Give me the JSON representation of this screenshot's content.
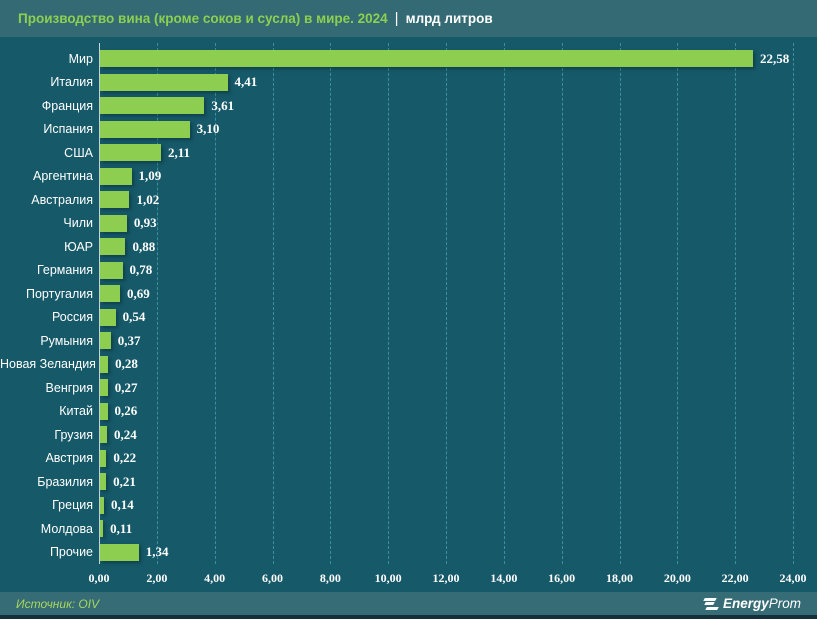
{
  "header": {
    "title": "Производство вина (кроме соков и сусла) в мире. 2024",
    "separator": "|",
    "subtitle": "млрд литров"
  },
  "chart_data": {
    "type": "bar",
    "orientation": "horizontal",
    "title": "Производство вина (кроме соков и сусла) в мире. 2024",
    "unit": "млрд литров",
    "categories": [
      "Мир",
      "Италия",
      "Франция",
      "Испания",
      "США",
      "Аргентина",
      "Австралия",
      "Чили",
      "ЮАР",
      "Германия",
      "Португалия",
      "Россия",
      "Румыния",
      "Новая Зеландия",
      "Венгрия",
      "Китай",
      "Грузия",
      "Австрия",
      "Бразилия",
      "Греция",
      "Молдова",
      "Прочие"
    ],
    "values": [
      22.58,
      4.41,
      3.61,
      3.1,
      2.11,
      1.09,
      1.02,
      0.93,
      0.88,
      0.78,
      0.69,
      0.54,
      0.37,
      0.28,
      0.27,
      0.26,
      0.24,
      0.22,
      0.21,
      0.14,
      0.11,
      1.34
    ],
    "value_labels": [
      "22,58",
      "4,41",
      "3,61",
      "3,10",
      "2,11",
      "1,09",
      "1,02",
      "0,93",
      "0,88",
      "0,78",
      "0,69",
      "0,54",
      "0,37",
      "0,28",
      "0,27",
      "0,26",
      "0,24",
      "0,22",
      "0,21",
      "0,14",
      "0,11",
      "1,34"
    ],
    "xlim": [
      0,
      24
    ],
    "x_tick_step": 2,
    "x_tick_labels": [
      "0,00",
      "2,00",
      "4,00",
      "6,00",
      "8,00",
      "10,00",
      "12,00",
      "14,00",
      "16,00",
      "18,00",
      "20,00",
      "22,00",
      "24,00"
    ],
    "grid": "vertical dashed every 2 units",
    "legend": "none",
    "bar_color": "#8DCE50",
    "background_color": "#165968"
  },
  "footer": {
    "source": "Источник: OIV",
    "logo_bold": "Energy",
    "logo_light": "Prom"
  },
  "colors": {
    "header_bg": "#336A74",
    "chart_bg": "#165968",
    "footer_bg": "#356C76",
    "bottom_strip": "#152F3B",
    "bar": "#8DCE50",
    "title_green": "#8CD051",
    "source_green": "#A9D75E",
    "grid": "#54B0C4",
    "axis_line": "#C4D6DA",
    "text": "#FFFFFF"
  }
}
